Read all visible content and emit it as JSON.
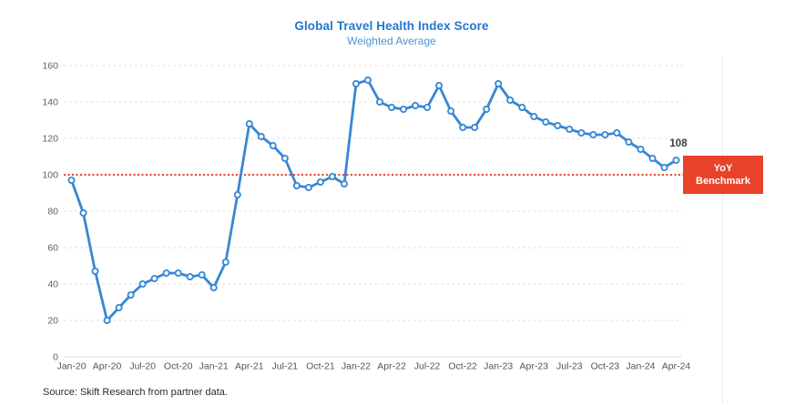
{
  "header": {
    "title": "Global Travel Health Index Score",
    "subtitle": "Weighted Average"
  },
  "benchmark_flag": {
    "line1": "YoY",
    "line2": "Benchmark"
  },
  "annotation": {
    "last_value": "108"
  },
  "footer": {
    "source": "Source: Skift Research from partner data."
  },
  "chart_data": {
    "type": "line",
    "title": "Global Travel Health Index Score",
    "subtitle": "Weighted Average",
    "legend": "none",
    "grid": "horizontal-dashed",
    "marker": "open-circle",
    "xlabel": "",
    "ylabel": "",
    "ylim": [
      0,
      160
    ],
    "yticks": [
      0,
      20,
      40,
      60,
      80,
      100,
      120,
      140,
      160
    ],
    "xticks": [
      "Jan-20",
      "Apr-20",
      "Jul-20",
      "Oct-20",
      "Jan-21",
      "Apr-21",
      "Jul-21",
      "Oct-21",
      "Jan-22",
      "Apr-22",
      "Jul-22",
      "Oct-22",
      "Jan-23",
      "Apr-23",
      "Jul-23",
      "Oct-23",
      "Jan-24",
      "Apr-24"
    ],
    "x": [
      "Jan-20",
      "Feb-20",
      "Mar-20",
      "Apr-20",
      "May-20",
      "Jun-20",
      "Jul-20",
      "Aug-20",
      "Sep-20",
      "Oct-20",
      "Nov-20",
      "Dec-20",
      "Jan-21",
      "Feb-21",
      "Mar-21",
      "Apr-21",
      "May-21",
      "Jun-21",
      "Jul-21",
      "Aug-21",
      "Sep-21",
      "Oct-21",
      "Nov-21",
      "Dec-21",
      "Jan-22",
      "Feb-22",
      "Mar-22",
      "Apr-22",
      "May-22",
      "Jun-22",
      "Jul-22",
      "Aug-22",
      "Sep-22",
      "Oct-22",
      "Nov-22",
      "Dec-22",
      "Jan-23",
      "Feb-23",
      "Mar-23",
      "Apr-23",
      "May-23",
      "Jun-23",
      "Jul-23",
      "Aug-23",
      "Sep-23",
      "Oct-23",
      "Nov-23",
      "Dec-23",
      "Jan-24",
      "Feb-24",
      "Mar-24",
      "Apr-24"
    ],
    "series": [
      {
        "name": "Global Travel Health Index Score (Weighted Average)",
        "values": [
          97,
          79,
          47,
          20,
          27,
          34,
          40,
          43,
          46,
          46,
          44,
          45,
          38,
          52,
          89,
          128,
          121,
          116,
          109,
          94,
          93,
          96,
          99,
          95,
          150,
          152,
          140,
          137,
          136,
          138,
          137,
          149,
          135,
          126,
          126,
          136,
          150,
          141,
          137,
          132,
          129,
          127,
          125,
          123,
          122,
          122,
          123,
          118,
          114,
          109,
          104,
          108
        ]
      }
    ],
    "benchmark_line": {
      "value": 100,
      "label": "YoY Benchmark",
      "style": "dotted",
      "color": "#e8432a"
    },
    "annotations": [
      {
        "x": "Apr-24",
        "value": 108,
        "text": "108"
      }
    ],
    "colors": {
      "line": "#3787d4",
      "marker_fill": "#ffffff",
      "title": "#2478d0",
      "subtitle": "#4e93da",
      "benchmark": "#e8432a",
      "grid": "#e2e2e2",
      "axis": "#d4d4d4",
      "tick_label": "#616161",
      "annotation_text": "#3d3d3d"
    }
  }
}
